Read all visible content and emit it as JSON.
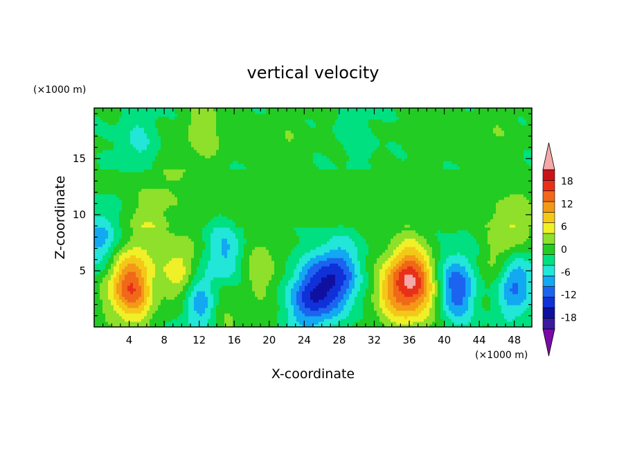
{
  "chart_data": {
    "type": "heatmap",
    "title": "vertical velocity",
    "xlabel": "X-coordinate",
    "ylabel": "Z-coordinate",
    "x_unit": "(×1000 m)",
    "y_unit": "(×1000 m)",
    "xlim": [
      0,
      50
    ],
    "ylim": [
      0,
      19.5
    ],
    "x_ticks": [
      "4",
      "8",
      "12",
      "16",
      "20",
      "24",
      "28",
      "32",
      "36",
      "40",
      "44",
      "48"
    ],
    "y_ticks": [
      "5",
      "10",
      "15"
    ],
    "colorbar": {
      "levels": [
        -21,
        -18,
        -15,
        -12,
        -9,
        -6,
        -3,
        0,
        3,
        6,
        9,
        12,
        15,
        18,
        21
      ],
      "tick_labels": [
        "18",
        "12",
        "6",
        "0",
        "-6",
        "-12",
        "-18"
      ],
      "colors": [
        "#7a0aa8",
        "#3a1aa0",
        "#1010a0",
        "#1030d8",
        "#1c64f0",
        "#12a8f2",
        "#22e6d8",
        "#00e080",
        "#22cc22",
        "#8ee02a",
        "#f0f028",
        "#f4c818",
        "#f49818",
        "#f06818",
        "#e83018",
        "#cc1418",
        "#f4a8a8"
      ],
      "extend": "both"
    },
    "features": [
      {
        "x": 4.5,
        "z": 3.5,
        "w": 15
      },
      {
        "x": 2.5,
        "z": 4.0,
        "w": 5
      },
      {
        "x": 10.0,
        "z": 5.0,
        "w": 8
      },
      {
        "x": 6.0,
        "z": 8.5,
        "w": 4
      },
      {
        "x": 12.3,
        "z": 2.3,
        "w": -11
      },
      {
        "x": 15.0,
        "z": 6.5,
        "w": -7
      },
      {
        "x": 14.2,
        "z": 2.1,
        "w": 6
      },
      {
        "x": 19.0,
        "z": 5.5,
        "w": 5
      },
      {
        "x": 24.3,
        "z": 2.5,
        "w": -11
      },
      {
        "x": 28.0,
        "z": 4.5,
        "w": -12
      },
      {
        "x": 26.0,
        "z": 3.5,
        "w": -6
      },
      {
        "x": 36.0,
        "z": 4.5,
        "w": 15
      },
      {
        "x": 34.0,
        "z": 3.0,
        "w": 8
      },
      {
        "x": 37.5,
        "z": 3.0,
        "w": 7
      },
      {
        "x": 41.5,
        "z": 3.5,
        "w": -12
      },
      {
        "x": 47.8,
        "z": 4.0,
        "w": -13
      },
      {
        "x": 46.0,
        "z": 5.0,
        "w": 6
      },
      {
        "x": 48.0,
        "z": 8.5,
        "w": 6
      },
      {
        "x": 12.5,
        "z": 17.5,
        "w": 5
      },
      {
        "x": 0.8,
        "z": 8.0,
        "w": -8
      },
      {
        "x": 8.0,
        "z": 13.0,
        "w": 2
      },
      {
        "x": 22.0,
        "z": 16.5,
        "w": 2
      },
      {
        "x": 38.0,
        "z": 17.5,
        "w": 2
      },
      {
        "x": 46.0,
        "z": 17.0,
        "w": 2
      },
      {
        "x": 30.0,
        "z": 17.5,
        "w": -2
      },
      {
        "x": 5.0,
        "z": 16.5,
        "w": -4
      }
    ]
  }
}
